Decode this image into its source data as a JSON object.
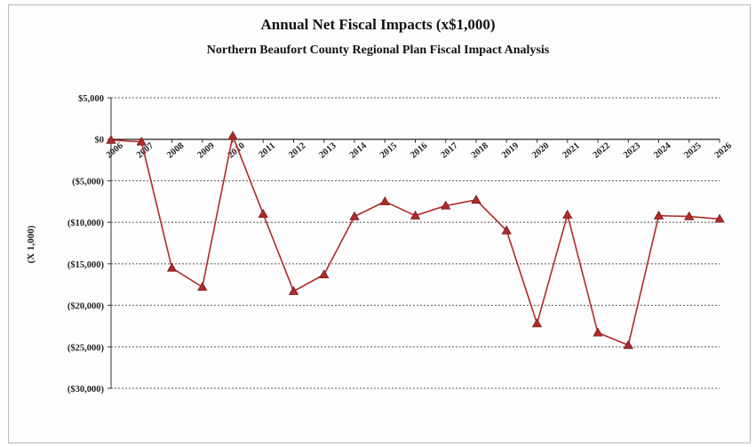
{
  "chart_data": {
    "type": "line",
    "title": "Annual Net Fiscal Impacts (x$1,000)",
    "subtitle": "Northern Beaufort County Regional Plan Fiscal Impact Analysis",
    "ylabel": "(X 1,000)",
    "xlabel": "",
    "ylim": [
      -30000,
      5000
    ],
    "yticks": [
      5000,
      0,
      -5000,
      -10000,
      -15000,
      -20000,
      -25000,
      -30000
    ],
    "ytick_labels": [
      "$5,000",
      "$0",
      "($5,000)",
      "($10,000)",
      "($15,000)",
      "($20,000)",
      "($25,000)",
      "($30,000)"
    ],
    "grid": "horizontal",
    "categories": [
      "2006",
      "2007",
      "2008",
      "2009",
      "2010",
      "2011",
      "2012",
      "2013",
      "2014",
      "2015",
      "2016",
      "2017",
      "2018",
      "2019",
      "2020",
      "2021",
      "2022",
      "2023",
      "2024",
      "2025",
      "2026"
    ],
    "series": [
      {
        "name": "",
        "color": "#b02a2a",
        "marker": "triangle",
        "values": [
          -100,
          -300,
          -15500,
          -17800,
          400,
          -9000,
          -18300,
          -16300,
          -9300,
          -7500,
          -9200,
          -8000,
          -7300,
          -11000,
          -22200,
          -9100,
          -23300,
          -24800,
          -9200,
          -9300,
          -9600
        ]
      }
    ]
  }
}
